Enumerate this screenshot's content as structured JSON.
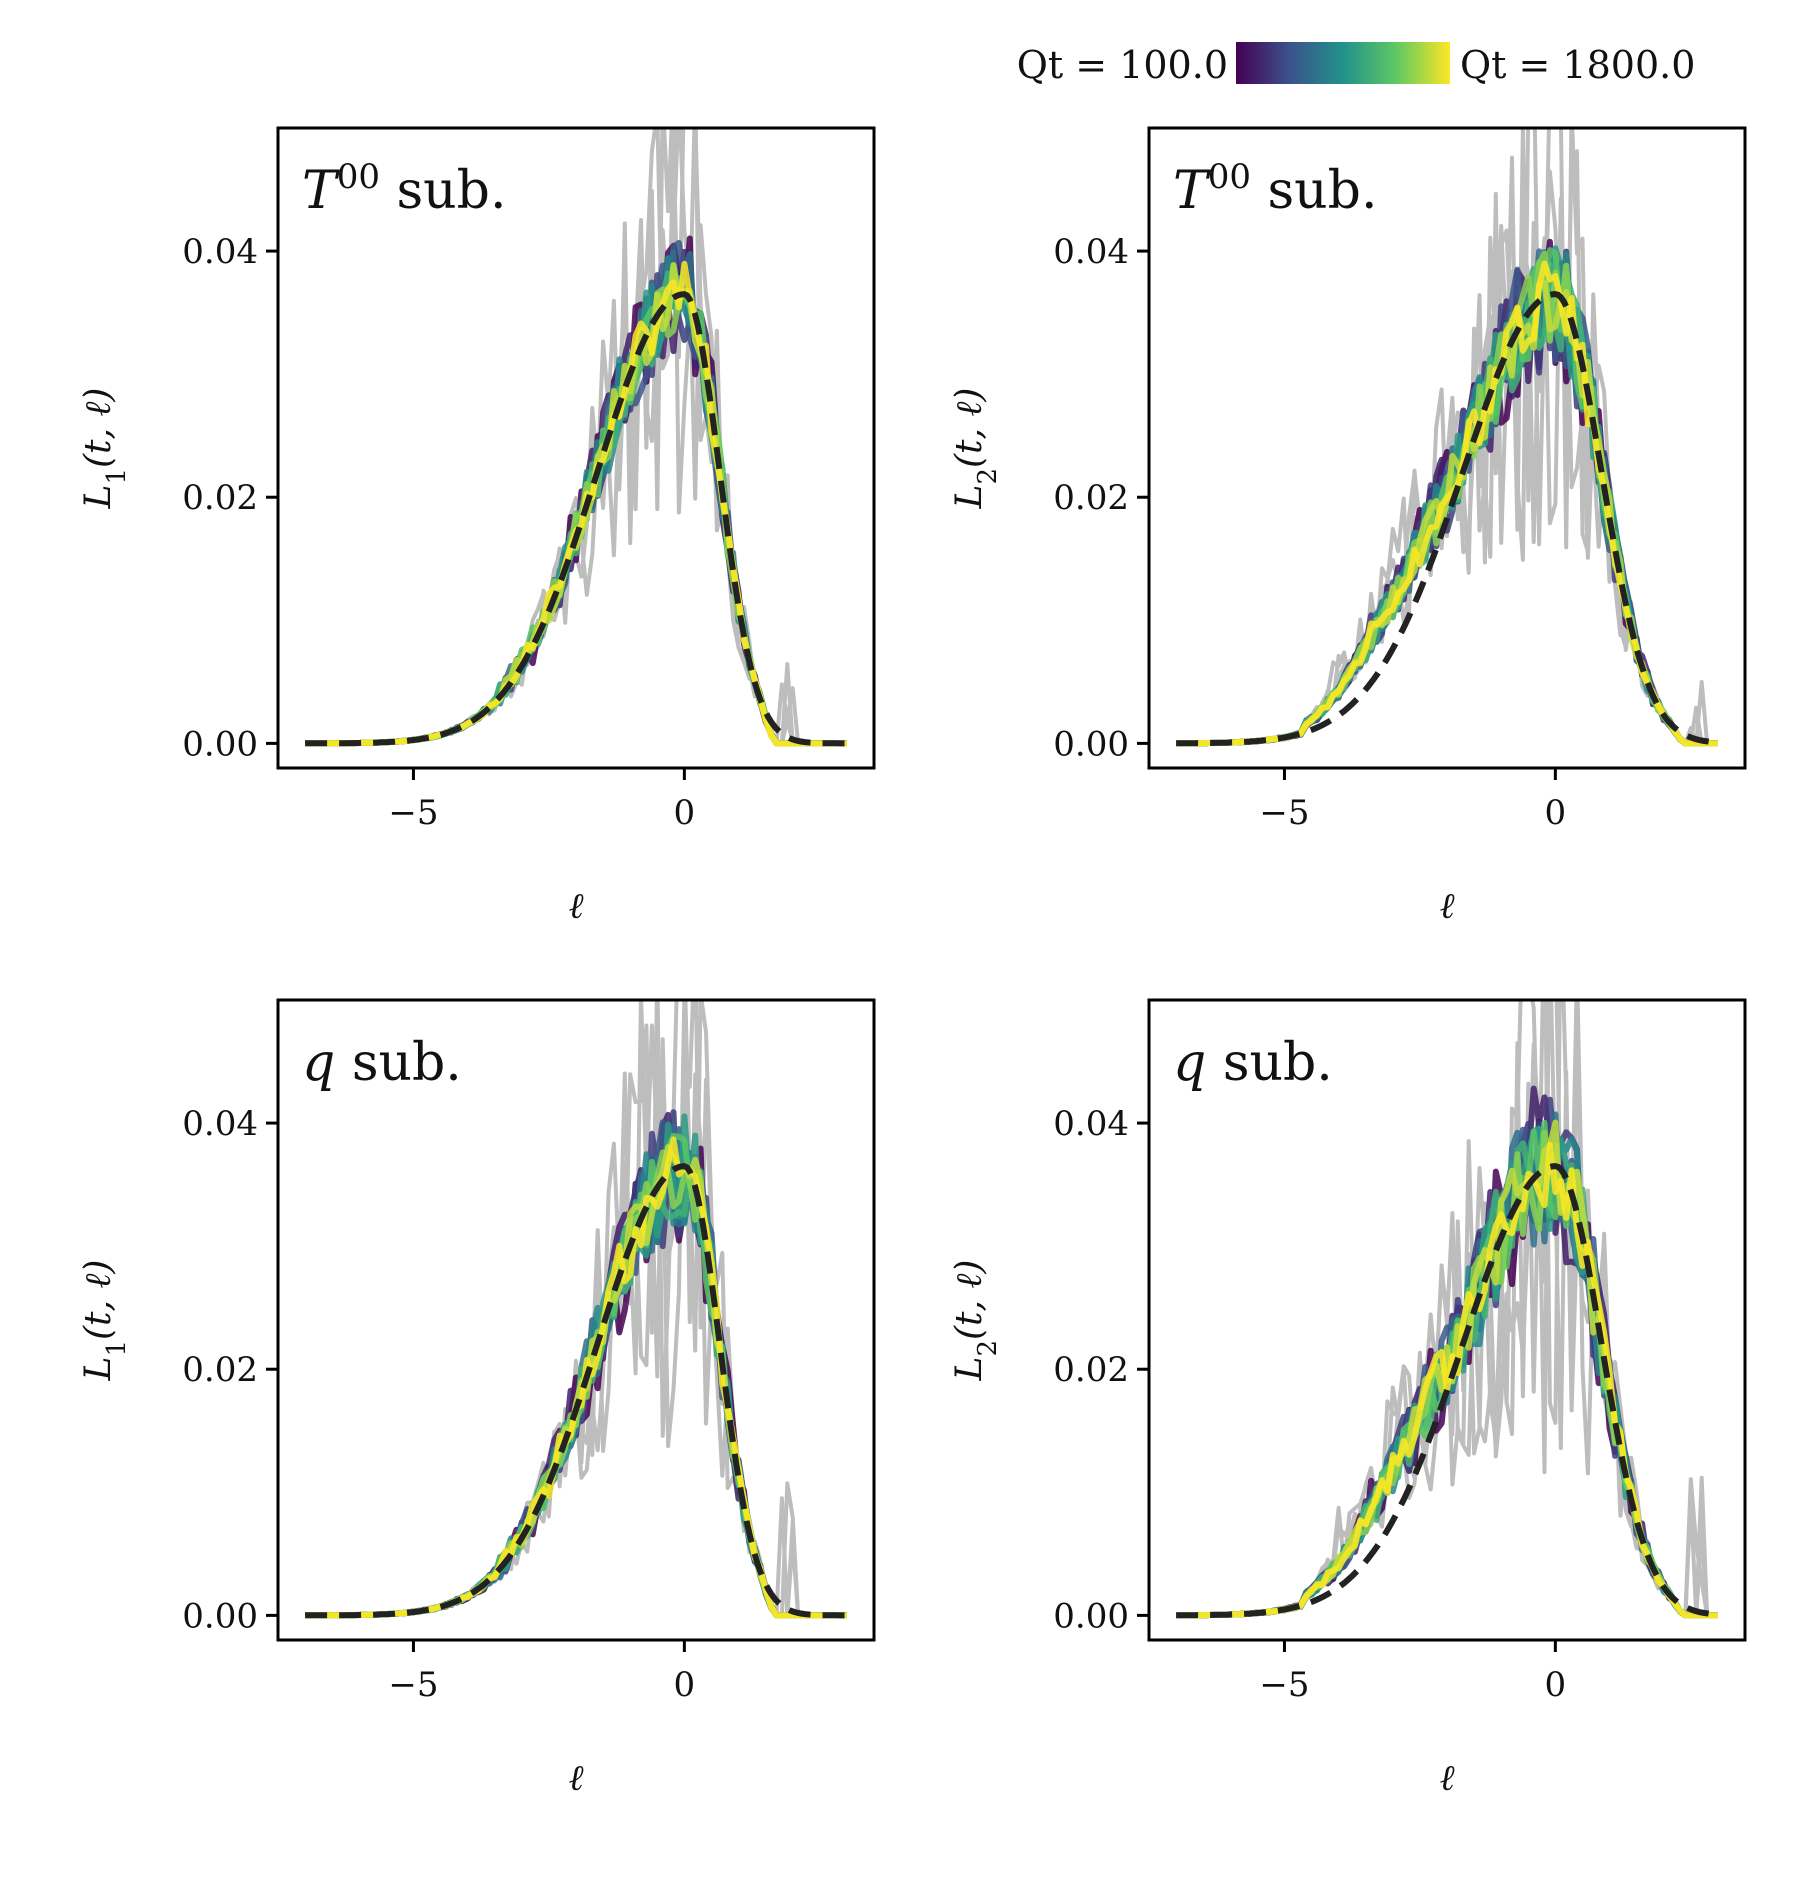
{
  "colorbar": {
    "label_min": "Qt = 100.0",
    "label_max": "Qt = 1800.0",
    "colormap": [
      "#440154",
      "#3b528b",
      "#21918c",
      "#5ec962",
      "#fde725"
    ]
  },
  "colors": {
    "gray": "#bdbdbd",
    "dashed": "#222222"
  },
  "chart_data": [
    {
      "type": "line",
      "id": "top-left",
      "title": "T^00 sub.",
      "title_main": "T",
      "title_sup": "00",
      "title_rest": " sub.",
      "xlabel": "ℓ",
      "ylabel": "L1(t, ℓ)",
      "ylabel_main": "L",
      "ylabel_sub": "1",
      "ylabel_rest": "(t, ℓ)",
      "xlim": [
        -7.5,
        3.5
      ],
      "ylim": [
        -0.002,
        0.05
      ],
      "xticks": [
        -5,
        0
      ],
      "xtick_labels": [
        "−5",
        "0"
      ],
      "yticks": [
        0.0,
        0.02,
        0.04
      ],
      "ytick_labels": [
        "0.00",
        "0.02",
        "0.04"
      ],
      "reference": {
        "peak": 0.0365,
        "mode": 0.0,
        "cut": 1.7,
        "left_end": -7.0,
        "right_end": 3.0,
        "sigma_left": 1.6,
        "sigma_right": 0.65
      },
      "gray_noise": 0.55,
      "colored_noise": 0.12,
      "seed": 11
    },
    {
      "type": "line",
      "id": "top-right",
      "title": "T^00 sub.",
      "title_main": "T",
      "title_sup": "00",
      "title_rest": " sub.",
      "xlabel": "ℓ",
      "ylabel": "L2(t, ℓ)",
      "ylabel_main": "L",
      "ylabel_sub": "2",
      "ylabel_rest": "(t, ℓ)",
      "xlim": [
        -7.5,
        3.5
      ],
      "ylim": [
        -0.002,
        0.05
      ],
      "xticks": [
        -5,
        0
      ],
      "xtick_labels": [
        "−5",
        "0"
      ],
      "yticks": [
        0.0,
        0.02,
        0.04
      ],
      "ytick_labels": [
        "0.00",
        "0.02",
        "0.04"
      ],
      "reference": {
        "peak": 0.0365,
        "mode": 0.0,
        "cut": 2.4,
        "left_end": -7.0,
        "right_end": 3.0,
        "sigma_left": 1.7,
        "sigma_right": 0.85,
        "shoulder_from": -4.6
      },
      "gray_noise": 0.6,
      "colored_noise": 0.15,
      "seed": 23
    },
    {
      "type": "line",
      "id": "bottom-left",
      "title": "q sub.",
      "title_main": "q",
      "title_sup": "",
      "title_rest": " sub.",
      "xlabel": "ℓ",
      "ylabel": "L1(t, ℓ)",
      "ylabel_main": "L",
      "ylabel_sub": "1",
      "ylabel_rest": "(t, ℓ)",
      "xlim": [
        -7.5,
        3.5
      ],
      "ylim": [
        -0.002,
        0.05
      ],
      "xticks": [
        -5,
        0
      ],
      "xtick_labels": [
        "−5",
        "0"
      ],
      "yticks": [
        0.0,
        0.02,
        0.04
      ],
      "ytick_labels": [
        "0.00",
        "0.02",
        "0.04"
      ],
      "reference": {
        "peak": 0.0365,
        "mode": 0.0,
        "cut": 1.7,
        "left_end": -7.0,
        "right_end": 3.0,
        "sigma_left": 1.6,
        "sigma_right": 0.65
      },
      "gray_noise": 0.65,
      "colored_noise": 0.14,
      "seed": 37
    },
    {
      "type": "line",
      "id": "bottom-right",
      "title": "q sub.",
      "title_main": "q",
      "title_sup": "",
      "title_rest": " sub.",
      "xlabel": "ℓ",
      "ylabel": "L2(t, ℓ)",
      "ylabel_main": "L",
      "ylabel_sub": "2",
      "ylabel_rest": "(t, ℓ)",
      "xlim": [
        -7.5,
        3.5
      ],
      "ylim": [
        -0.002,
        0.05
      ],
      "xticks": [
        -5,
        0
      ],
      "xtick_labels": [
        "−5",
        "0"
      ],
      "yticks": [
        0.0,
        0.02,
        0.04
      ],
      "ytick_labels": [
        "0.00",
        "0.02",
        "0.04"
      ],
      "reference": {
        "peak": 0.0365,
        "mode": 0.0,
        "cut": 2.4,
        "left_end": -7.0,
        "right_end": 3.0,
        "sigma_left": 1.7,
        "sigma_right": 0.85,
        "shoulder_from": -4.6
      },
      "gray_noise": 0.7,
      "colored_noise": 0.18,
      "seed": 51
    }
  ]
}
